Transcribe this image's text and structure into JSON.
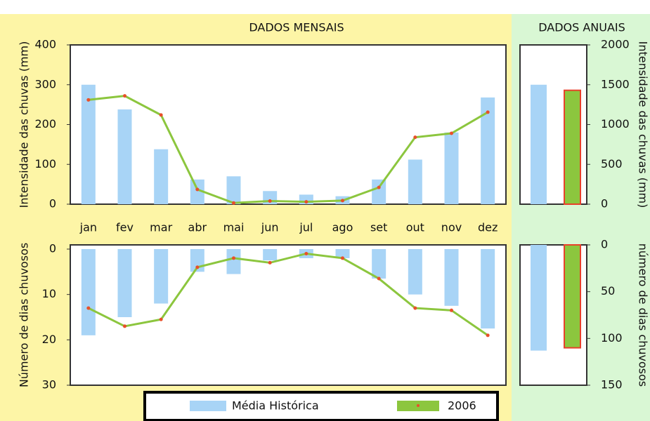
{
  "headers": {
    "monthly": "DADOS MENSAIS",
    "annual": "DADOS ANUAIS"
  },
  "legend": {
    "historic": "Média Histórica",
    "current": "2006"
  },
  "chart_data": [
    {
      "type": "combo",
      "ylabel": "Intensidade das chuvas (mm)",
      "categories": [
        "jan",
        "fev",
        "mar",
        "abr",
        "mai",
        "jun",
        "jul",
        "ago",
        "set",
        "out",
        "nov",
        "dez"
      ],
      "ylim": [
        0,
        400
      ],
      "yticks": [
        0,
        100,
        200,
        300,
        400
      ],
      "y_inverted": false,
      "grid": false,
      "series": [
        {
          "name": "Média Histórica",
          "kind": "bar",
          "color": "#a8d4f6",
          "values": [
            300,
            238,
            138,
            62,
            70,
            33,
            24,
            20,
            62,
            112,
            180,
            268
          ]
        },
        {
          "name": "2006",
          "kind": "line",
          "color": "#8cc63e",
          "marker_color": "#e8502a",
          "values": [
            262,
            272,
            224,
            37,
            3,
            8,
            6,
            9,
            42,
            168,
            178,
            231
          ]
        }
      ]
    },
    {
      "type": "combo",
      "ylabel": "Número de dias chuvosos",
      "ylim": [
        0,
        30
      ],
      "yticks": [
        0,
        10,
        20,
        30
      ],
      "y_inverted": true,
      "grid": false,
      "series": [
        {
          "kind": "bar",
          "color": "#a8d4f6",
          "values": [
            19,
            15,
            12,
            5,
            5.5,
            2.5,
            2,
            2,
            6.5,
            10,
            12.5,
            17.5
          ]
        },
        {
          "kind": "line",
          "color": "#8cc63e",
          "marker_color": "#e8502a",
          "values": [
            13,
            17,
            15.5,
            4,
            2,
            3,
            1,
            2,
            6.5,
            13,
            13.5,
            19
          ]
        }
      ]
    },
    {
      "type": "bar",
      "ylabel": "Intensidade das chuvas (mm)",
      "ylim": [
        0,
        2000
      ],
      "yticks": [
        0,
        500,
        1000,
        1500,
        2000
      ],
      "y_inverted": false,
      "values": [
        1500,
        1430
      ],
      "colors": [
        "#a8d4f6",
        "#8cc63e"
      ],
      "border_colors": [
        "none",
        "#e8402a"
      ]
    },
    {
      "type": "bar",
      "ylabel": "número de dias chuvosos",
      "ylim": [
        0,
        150
      ],
      "yticks": [
        0,
        50,
        100,
        150
      ],
      "y_inverted": true,
      "values": [
        113,
        110
      ],
      "colors": [
        "#a8d4f6",
        "#8cc63e"
      ],
      "border_colors": [
        "none",
        "#e8402a"
      ]
    }
  ]
}
